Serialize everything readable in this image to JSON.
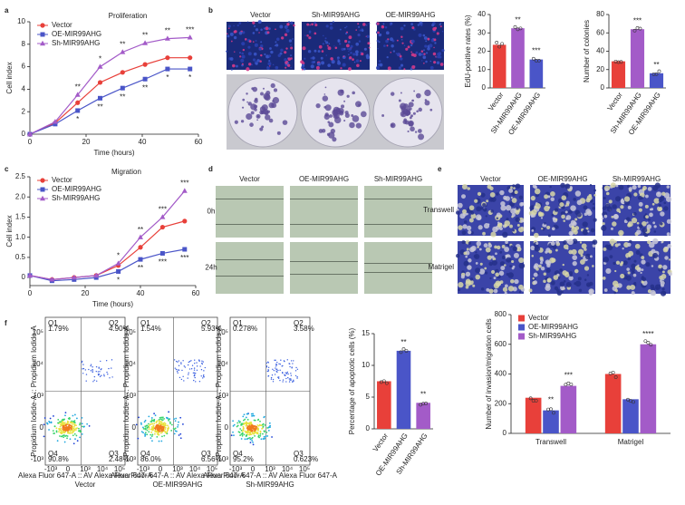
{
  "panel_labels": [
    "a",
    "b",
    "c",
    "d",
    "e",
    "f"
  ],
  "chart_data": [
    {
      "type": "line",
      "title": "Proliferation",
      "x_label": "Time (hours)",
      "y_label": "Cell index",
      "x": [
        0,
        9,
        17,
        25,
        33,
        41,
        49,
        57
      ],
      "xlim": [
        0,
        60
      ],
      "xticks": [
        0,
        20,
        40,
        60
      ],
      "ylim": [
        0,
        10
      ],
      "yticks": [
        0,
        2,
        4,
        6,
        8,
        10
      ],
      "legend": "upper left",
      "series": [
        {
          "name": "Vector",
          "color": "#e8403a",
          "marker": "circle",
          "values": [
            0,
            1.0,
            2.8,
            4.6,
            5.5,
            6.2,
            6.8,
            6.8
          ],
          "sig": [
            null,
            null,
            null,
            null,
            null,
            null,
            null,
            null
          ]
        },
        {
          "name": "OE-MIR99AHG",
          "color": "#4a55c8",
          "marker": "square",
          "values": [
            0,
            0.9,
            2.1,
            3.2,
            4.1,
            4.9,
            5.8,
            5.8
          ],
          "sig": [
            null,
            null,
            "*",
            "**",
            "**",
            "**",
            "*",
            "*"
          ]
        },
        {
          "name": "Sh-MIR99AHG",
          "color": "#a35bc8",
          "marker": "triangle",
          "values": [
            0,
            1.1,
            3.5,
            6.0,
            7.3,
            8.1,
            8.5,
            8.6
          ],
          "sig": [
            null,
            null,
            "**",
            "*",
            "**",
            "**",
            "**",
            "***"
          ]
        }
      ]
    },
    {
      "type": "bar",
      "y_label": "EdU-positive rates (%)",
      "categories": [
        "Vector",
        "Sh-MIR99AHG",
        "OE-MIR99AHG"
      ],
      "values": [
        23.5,
        32.5,
        15.5
      ],
      "colors": [
        "#e8403a",
        "#a35bc8",
        "#4a55c8"
      ],
      "sig": [
        null,
        "**",
        "***"
      ],
      "ylim": [
        0,
        40
      ],
      "yticks": [
        0,
        10,
        20,
        30,
        40
      ]
    },
    {
      "type": "bar",
      "y_label": "Number of colonies",
      "categories": [
        "Vector",
        "Sh-MIR99AHG",
        "OE-MIR99AHG"
      ],
      "values": [
        29,
        64,
        16
      ],
      "colors": [
        "#e8403a",
        "#a35bc8",
        "#4a55c8"
      ],
      "sig": [
        null,
        "***",
        "**"
      ],
      "ylim": [
        0,
        80
      ],
      "yticks": [
        0,
        20,
        40,
        60,
        80
      ]
    },
    {
      "type": "line",
      "title": "Migration",
      "x_label": "Time (hours)",
      "y_label": "Cell index",
      "x": [
        0,
        8,
        16,
        24,
        32,
        40,
        48,
        56
      ],
      "xlim": [
        0,
        60
      ],
      "xticks": [
        0,
        20,
        40,
        60
      ],
      "ylim": [
        -0.2,
        2.5
      ],
      "yticks": [
        0,
        0.5,
        {
          "value": 1,
          "label": "1.0"
        },
        1.5,
        {
          "value": 2,
          "label": "2.0"
        },
        2.5
      ],
      "legend": "upper left",
      "series": [
        {
          "name": "Vector",
          "color": "#e8403a",
          "marker": "circle",
          "values": [
            0.05,
            -0.05,
            0,
            0.05,
            0.3,
            0.75,
            1.25,
            1.4
          ],
          "sig": [
            null,
            null,
            null,
            null,
            null,
            null,
            null,
            null
          ]
        },
        {
          "name": "OE-MIR99AHG",
          "color": "#4a55c8",
          "marker": "square",
          "values": [
            0.05,
            -0.08,
            -0.05,
            0,
            0.15,
            0.45,
            0.6,
            0.7
          ],
          "sig": [
            null,
            null,
            null,
            null,
            "*",
            "**",
            "***",
            "***"
          ]
        },
        {
          "name": "Sh-MIR99AHG",
          "color": "#a35bc8",
          "marker": "triangle",
          "values": [
            0.05,
            -0.05,
            0,
            0.05,
            0.35,
            1.0,
            1.5,
            2.15
          ],
          "sig": [
            null,
            null,
            null,
            null,
            "*",
            "**",
            "***",
            "***"
          ]
        }
      ]
    },
    {
      "type": "bar",
      "y_label": "Percentage of apoptotic cells (%)",
      "categories": [
        "Vector",
        "OE-MIR99AHG",
        "Sh-MIR99AHG"
      ],
      "values": [
        7.5,
        12.3,
        4.1
      ],
      "colors": [
        "#e8403a",
        "#4a55c8",
        "#a35bc8"
      ],
      "sig": [
        null,
        "**",
        "**"
      ],
      "ylim": [
        0,
        15
      ],
      "yticks": [
        0,
        5,
        10,
        15
      ]
    },
    {
      "type": "grouped_bar",
      "y_label": "Number of invasion/migration cells",
      "categories": [
        "Transwell",
        "Matrigel"
      ],
      "ylim": [
        0,
        800
      ],
      "yticks": [
        0,
        200,
        400,
        600,
        800
      ],
      "legend": "upper left",
      "series": [
        {
          "name": "Vector",
          "color": "#e8403a",
          "values": [
            240,
            400
          ],
          "sig": [
            null,
            null
          ]
        },
        {
          "name": "OE-MIR99AHG",
          "color": "#4a55c8",
          "values": [
            155,
            230
          ],
          "sig": [
            "**",
            null
          ]
        },
        {
          "name": "Sh-MIR99AHG",
          "color": "#a35bc8",
          "values": [
            320,
            600
          ],
          "sig": [
            "***",
            "****"
          ]
        }
      ]
    }
  ],
  "images": {
    "b": {
      "columns": [
        "Vector",
        "Sh-MIR99AHG",
        "OE-MIR99AHG"
      ]
    },
    "d": {
      "columns": [
        "Vector",
        "OE-MIR99AHG",
        "Sh-MIR99AHG"
      ],
      "rows": [
        "0h",
        "24h"
      ]
    },
    "e": {
      "columns": [
        "Vector",
        "OE-MIR99AHG",
        "Sh-MIR99AHG"
      ],
      "rows": [
        "Transwell",
        "Matrigel"
      ]
    }
  },
  "flow": {
    "x_label": "Alexa Fluor 647-A :: AV Alexa Fluor 647-A",
    "y_label": "Propidium Iodide-A :: Propidium Iodide-A",
    "ticks": [
      "-10³",
      "0",
      "10³",
      "10⁴",
      "10⁵"
    ],
    "plots": [
      {
        "name": "Vector",
        "quadrants": [
          {
            "name": "Q1",
            "value": "1.79%"
          },
          {
            "name": "Q2",
            "value": "4.90%"
          },
          {
            "name": "Q3",
            "value": "2.48%"
          },
          {
            "name": "Q4",
            "value": "90.8%"
          }
        ]
      },
      {
        "name": "OE-MIR99AHG",
        "quadrants": [
          {
            "name": "Q1",
            "value": "1.54%"
          },
          {
            "name": "Q2",
            "value": "5.93%"
          },
          {
            "name": "Q3",
            "value": "6.56%"
          },
          {
            "name": "Q4",
            "value": "86.0%"
          }
        ]
      },
      {
        "name": "Sh-MIR99AHG",
        "quadrants": [
          {
            "name": "Q1",
            "value": "0.278%"
          },
          {
            "name": "Q2",
            "value": "3.58%"
          },
          {
            "name": "Q3",
            "value": "0.623%"
          },
          {
            "name": "Q4",
            "value": "95.2%"
          }
        ]
      }
    ]
  }
}
